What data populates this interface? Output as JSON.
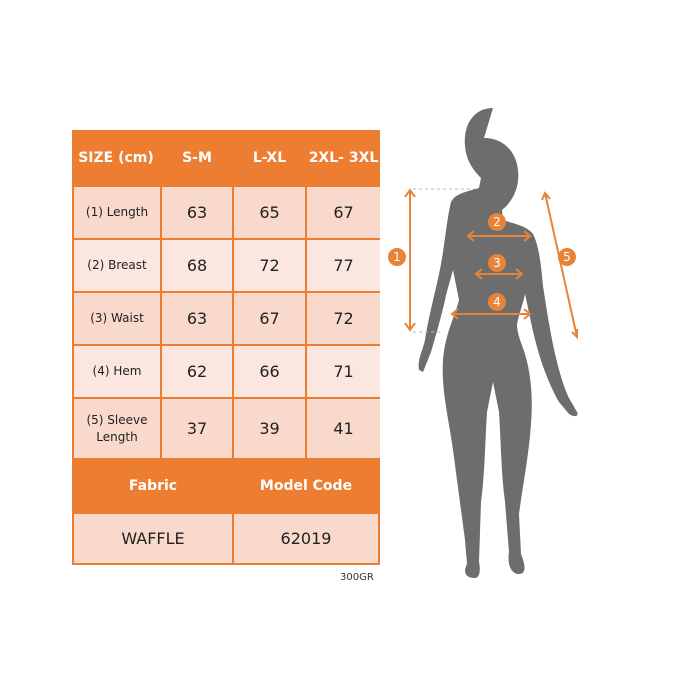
{
  "table": {
    "header": [
      "SIZE (cm)",
      "S-M",
      "L-XL",
      "2XL- 3XL"
    ],
    "rows": [
      {
        "label": "(1) Length",
        "values": [
          "63",
          "65",
          "67"
        ]
      },
      {
        "label": "(2) Breast",
        "values": [
          "68",
          "72",
          "77"
        ]
      },
      {
        "label": "(3) Waist",
        "values": [
          "63",
          "67",
          "72"
        ]
      },
      {
        "label": "(4) Hem",
        "values": [
          "62",
          "66",
          "71"
        ]
      },
      {
        "label": "(5) Sleeve Length",
        "values": [
          "37",
          "39",
          "41"
        ]
      }
    ],
    "info_header": [
      "Fabric",
      "Model Code"
    ],
    "info_values": [
      "WAFFLE",
      "62019"
    ]
  },
  "note": "300GR",
  "figure": {
    "markers": [
      "1",
      "2",
      "3",
      "4",
      "5"
    ]
  },
  "colors": {
    "accent": "#ed7d31",
    "cell": "#f8d9cc",
    "silhouette": "#6d6d6d"
  }
}
